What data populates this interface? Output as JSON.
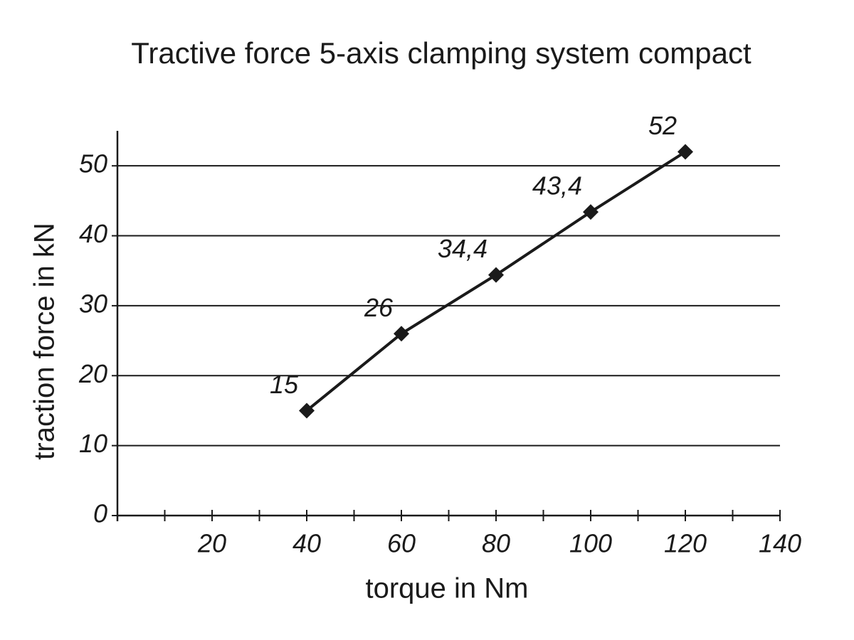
{
  "chart_data": {
    "type": "line",
    "title": "Tractive force 5-axis clamping system compact",
    "x_label": "torque in Nm",
    "y_label": "traction force in kN",
    "x": [
      40,
      60,
      80,
      100,
      120
    ],
    "series": [
      {
        "name": "traction force",
        "color": "#1a1a1a",
        "values": [
          15,
          26,
          34.4,
          43.4,
          52
        ],
        "value_labels": [
          "15",
          "26",
          "34,4",
          "43,4",
          "52"
        ]
      }
    ],
    "xlim": [
      0,
      140
    ],
    "xticks": [
      20,
      40,
      60,
      80,
      100,
      120,
      140
    ],
    "xticks_minor": [
      10,
      30,
      50,
      70,
      90,
      110,
      130
    ],
    "ylim": [
      0,
      55
    ],
    "yticks": [
      0,
      10,
      20,
      30,
      40,
      50
    ],
    "grid": true,
    "marker": "diamond"
  }
}
